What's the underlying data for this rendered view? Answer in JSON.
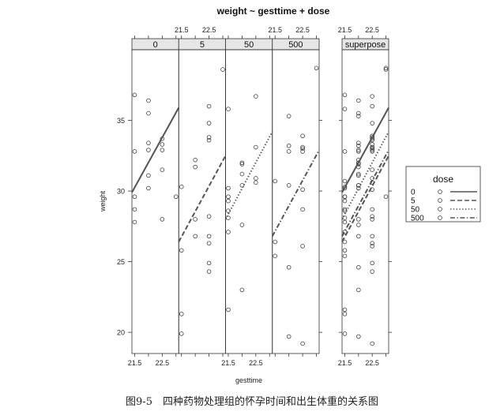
{
  "caption": "图9-5　四种药物处理组的怀孕时间和出生体重的关系图",
  "chart_data": {
    "type": "scatter",
    "title": "weight ~ gesttime + dose",
    "xlabel": "gesttime",
    "ylabel": "weight",
    "xlim": [
      21.4,
      23.1
    ],
    "ylim": [
      18.5,
      40
    ],
    "x_ticks": [
      21.5,
      22.5
    ],
    "y_ticks": [
      20,
      25,
      30,
      35
    ],
    "panels": [
      {
        "label": "0",
        "points": [
          [
            21.5,
            36.8
          ],
          [
            21.5,
            32.8
          ],
          [
            21.5,
            29.6
          ],
          [
            21.5,
            28.7
          ],
          [
            21.5,
            27.8
          ],
          [
            22.0,
            36.4
          ],
          [
            22.0,
            35.5
          ],
          [
            22.0,
            33.4
          ],
          [
            22.0,
            32.9
          ],
          [
            22.0,
            31.1
          ],
          [
            22.0,
            30.2
          ],
          [
            22.5,
            33.7
          ],
          [
            22.5,
            33.3
          ],
          [
            22.5,
            32.9
          ],
          [
            22.5,
            31.5
          ],
          [
            22.5,
            28.0
          ],
          [
            23.0,
            29.6
          ]
        ],
        "lines": [
          {
            "dose": "0",
            "y_start": 29.9,
            "y_end": 35.9
          }
        ]
      },
      {
        "label": "5",
        "points": [
          [
            21.5,
            30.3
          ],
          [
            21.5,
            25.8
          ],
          [
            21.5,
            21.3
          ],
          [
            21.5,
            19.9
          ],
          [
            22.0,
            32.2
          ],
          [
            22.0,
            31.7
          ],
          [
            22.0,
            28.0
          ],
          [
            22.0,
            26.8
          ],
          [
            22.5,
            36.0
          ],
          [
            22.5,
            34.8
          ],
          [
            22.5,
            33.8
          ],
          [
            22.5,
            33.6
          ],
          [
            22.5,
            28.2
          ],
          [
            22.5,
            26.8
          ],
          [
            22.5,
            26.3
          ],
          [
            22.5,
            24.9
          ],
          [
            22.5,
            24.3
          ],
          [
            23.0,
            38.6
          ]
        ],
        "lines": [
          {
            "dose": "5",
            "y_start": 26.4,
            "y_end": 32.5
          }
        ]
      },
      {
        "label": "50",
        "points": [
          [
            21.5,
            35.8
          ],
          [
            21.5,
            30.2
          ],
          [
            21.5,
            29.6
          ],
          [
            21.5,
            29.3
          ],
          [
            21.5,
            28.6
          ],
          [
            21.5,
            28.1
          ],
          [
            21.5,
            27.1
          ],
          [
            21.5,
            21.6
          ],
          [
            22.0,
            32.0
          ],
          [
            22.0,
            31.9
          ],
          [
            22.0,
            31.2
          ],
          [
            22.0,
            30.4
          ],
          [
            22.0,
            27.6
          ],
          [
            22.0,
            23.0
          ],
          [
            22.5,
            36.7
          ],
          [
            22.5,
            33.1
          ],
          [
            22.5,
            30.9
          ],
          [
            22.5,
            30.6
          ]
        ],
        "lines": [
          {
            "dose": "50",
            "y_start": 28.0,
            "y_end": 34.2
          }
        ]
      },
      {
        "label": "500",
        "points": [
          [
            21.5,
            30.7
          ],
          [
            21.5,
            26.4
          ],
          [
            21.5,
            25.4
          ],
          [
            22.0,
            35.3
          ],
          [
            22.0,
            33.2
          ],
          [
            22.0,
            32.8
          ],
          [
            22.0,
            30.4
          ],
          [
            22.0,
            24.6
          ],
          [
            22.0,
            19.7
          ],
          [
            22.5,
            33.9
          ],
          [
            22.5,
            33.1
          ],
          [
            22.5,
            33.0
          ],
          [
            22.5,
            32.8
          ],
          [
            22.5,
            30.1
          ],
          [
            22.5,
            28.7
          ],
          [
            22.5,
            26.1
          ],
          [
            22.5,
            19.2
          ],
          [
            23.0,
            38.7
          ]
        ],
        "lines": [
          {
            "dose": "500",
            "y_start": 26.8,
            "y_end": 32.9
          }
        ]
      },
      {
        "label": "superpose",
        "points": [
          [
            21.5,
            36.8
          ],
          [
            21.5,
            32.8
          ],
          [
            21.5,
            29.6
          ],
          [
            21.5,
            28.7
          ],
          [
            21.5,
            27.8
          ],
          [
            22.0,
            36.4
          ],
          [
            22.0,
            35.5
          ],
          [
            22.0,
            33.4
          ],
          [
            22.0,
            32.9
          ],
          [
            22.0,
            31.1
          ],
          [
            22.0,
            30.2
          ],
          [
            22.5,
            33.7
          ],
          [
            22.5,
            33.3
          ],
          [
            22.5,
            32.9
          ],
          [
            22.5,
            31.5
          ],
          [
            22.5,
            28.0
          ],
          [
            23.0,
            29.6
          ],
          [
            21.5,
            30.3
          ],
          [
            21.5,
            25.8
          ],
          [
            21.5,
            21.3
          ],
          [
            21.5,
            19.9
          ],
          [
            22.0,
            32.2
          ],
          [
            22.0,
            31.7
          ],
          [
            22.0,
            28.0
          ],
          [
            22.0,
            26.8
          ],
          [
            22.5,
            36.0
          ],
          [
            22.5,
            34.8
          ],
          [
            22.5,
            33.8
          ],
          [
            22.5,
            33.6
          ],
          [
            22.5,
            28.2
          ],
          [
            22.5,
            26.8
          ],
          [
            22.5,
            26.3
          ],
          [
            22.5,
            24.9
          ],
          [
            22.5,
            24.3
          ],
          [
            23.0,
            38.6
          ],
          [
            21.5,
            35.8
          ],
          [
            21.5,
            30.2
          ],
          [
            21.5,
            29.6
          ],
          [
            21.5,
            29.3
          ],
          [
            21.5,
            28.6
          ],
          [
            21.5,
            28.1
          ],
          [
            21.5,
            27.1
          ],
          [
            21.5,
            21.6
          ],
          [
            22.0,
            32.0
          ],
          [
            22.0,
            31.9
          ],
          [
            22.0,
            31.2
          ],
          [
            22.0,
            30.4
          ],
          [
            22.0,
            27.6
          ],
          [
            22.0,
            23.0
          ],
          [
            22.5,
            36.7
          ],
          [
            22.5,
            33.1
          ],
          [
            22.5,
            30.9
          ],
          [
            22.5,
            30.6
          ],
          [
            21.5,
            30.7
          ],
          [
            21.5,
            26.4
          ],
          [
            21.5,
            25.4
          ],
          [
            22.0,
            35.3
          ],
          [
            22.0,
            33.2
          ],
          [
            22.0,
            32.8
          ],
          [
            22.0,
            30.4
          ],
          [
            22.0,
            24.6
          ],
          [
            22.0,
            19.7
          ],
          [
            22.5,
            33.9
          ],
          [
            22.5,
            33.1
          ],
          [
            22.5,
            33.0
          ],
          [
            22.5,
            32.8
          ],
          [
            22.5,
            30.1
          ],
          [
            22.5,
            28.7
          ],
          [
            22.5,
            26.1
          ],
          [
            22.5,
            19.2
          ],
          [
            23.0,
            38.7
          ]
        ],
        "lines": [
          {
            "dose": "0",
            "y_start": 29.9,
            "y_end": 35.9
          },
          {
            "dose": "5",
            "y_start": 26.4,
            "y_end": 32.5
          },
          {
            "dose": "50",
            "y_start": 28.0,
            "y_end": 34.2
          },
          {
            "dose": "500",
            "y_start": 26.8,
            "y_end": 32.9
          }
        ]
      }
    ],
    "legend": {
      "title": "dose",
      "placement": "right",
      "items": [
        {
          "label": "0",
          "line_style": "solid"
        },
        {
          "label": "5",
          "line_style": "dashed"
        },
        {
          "label": "50",
          "line_style": "dotted"
        },
        {
          "label": "500",
          "line_style": "dotdash"
        }
      ]
    },
    "grid": false
  }
}
